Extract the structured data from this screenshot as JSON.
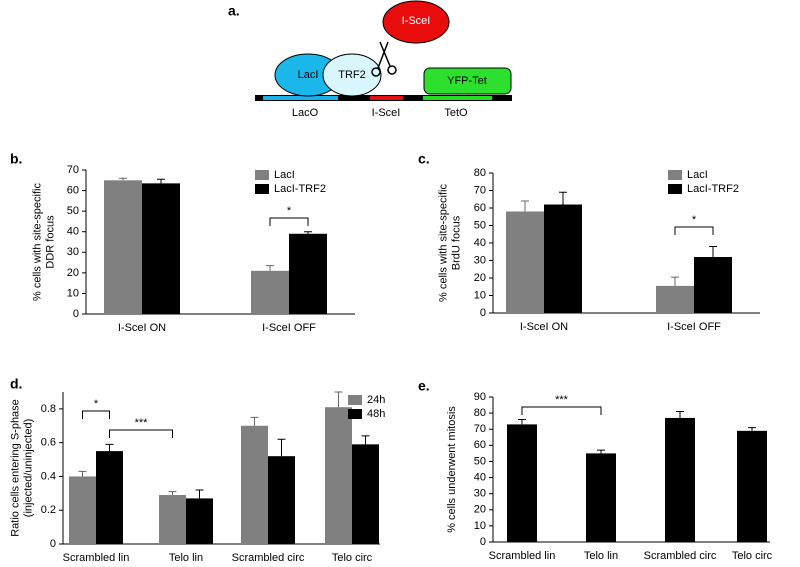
{
  "diagram": {
    "label": "a.",
    "proteins": [
      "LacI",
      "TRF2",
      "I-SceI",
      "YFP-Tet"
    ],
    "sites": [
      "LacO",
      "I-SceI",
      "TetO"
    ]
  },
  "chart_data": [
    {
      "type": "bar",
      "panel_label": "b.",
      "y_label": [
        "% cells with site-specific",
        "DDR focus"
      ],
      "categories": [
        "I-SceI ON",
        "I-SceI OFF"
      ],
      "series": [
        {
          "name": "LacI",
          "color": "#808080",
          "values": [
            65,
            21
          ],
          "errors": [
            1,
            2.5
          ]
        },
        {
          "name": "LacI-TRF2",
          "color": "#000000",
          "values": [
            63.5,
            39
          ],
          "errors": [
            2,
            1
          ]
        }
      ],
      "ylim": [
        0,
        70
      ],
      "yticks": [
        0,
        10,
        20,
        30,
        40,
        50,
        60,
        70
      ],
      "legend": "upper right",
      "annotations": [
        {
          "text": "*"
        }
      ]
    },
    {
      "type": "bar",
      "panel_label": "c.",
      "y_label": [
        "% cells with site-specific",
        "BrdU focus"
      ],
      "categories": [
        "I-SceI ON",
        "I-SceI OFF"
      ],
      "series": [
        {
          "name": "LacI",
          "color": "#808080",
          "values": [
            58,
            15.5
          ],
          "errors": [
            6,
            5
          ]
        },
        {
          "name": "LacI-TRF2",
          "color": "#000000",
          "values": [
            62,
            32
          ],
          "errors": [
            7,
            6
          ]
        }
      ],
      "ylim": [
        0,
        80
      ],
      "yticks": [
        0,
        10,
        20,
        30,
        40,
        50,
        60,
        70,
        80
      ],
      "legend": "upper right",
      "annotations": [
        {
          "text": "*"
        }
      ]
    },
    {
      "type": "bar",
      "panel_label": "d.",
      "y_label": [
        "Ratio cells entering S-phase",
        "(injected/uninjected)"
      ],
      "categories": [
        "Scrambled lin",
        "Telo lin",
        "Scrambled circ",
        "Telo circ"
      ],
      "series": [
        {
          "name": "24h",
          "color": "#808080",
          "values": [
            0.4,
            0.29,
            0.7,
            0.81
          ],
          "errors": [
            0.03,
            0.02,
            0.05,
            0.09
          ]
        },
        {
          "name": "48h",
          "color": "#000000",
          "values": [
            0.55,
            0.27,
            0.52,
            0.59
          ],
          "errors": [
            0.04,
            0.05,
            0.1,
            0.05
          ]
        }
      ],
      "ylim": [
        0,
        0.9
      ],
      "yticks": [
        0,
        0.2,
        0.4,
        0.6,
        0.8
      ],
      "legend": "upper right",
      "annotations": [
        {
          "text": "*"
        },
        {
          "text": "***"
        }
      ]
    },
    {
      "type": "bar",
      "panel_label": "e.",
      "y_label": [
        "% cells underwent mitosis"
      ],
      "categories": [
        "Scrambled lin",
        "Telo lin",
        "Scrambled circ",
        "Telo circ"
      ],
      "color": "#000000",
      "values": [
        73,
        55,
        77,
        69
      ],
      "errors": [
        3,
        2,
        4,
        2
      ],
      "ylim": [
        0,
        90
      ],
      "yticks": [
        0,
        10,
        20,
        30,
        40,
        50,
        60,
        70,
        80,
        90
      ],
      "annotations": [
        {
          "text": "***"
        }
      ]
    }
  ]
}
